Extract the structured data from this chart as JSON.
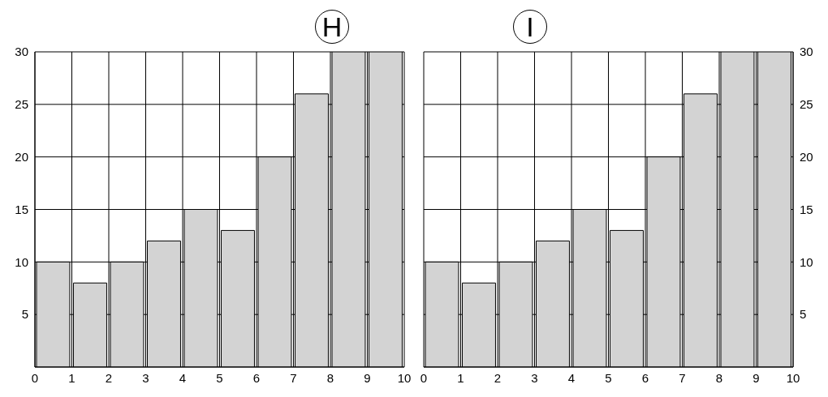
{
  "chart_data": [
    {
      "type": "histogram",
      "title": "H",
      "bins": [
        0,
        1,
        2,
        3,
        4,
        5,
        6,
        7,
        8,
        9,
        10
      ],
      "values": [
        10,
        8,
        10,
        12,
        15,
        13,
        20,
        26,
        30,
        30
      ],
      "color": "#d3d3d3",
      "xlim": [
        0,
        10
      ],
      "xticks": [
        0,
        1,
        2,
        3,
        4,
        5,
        6,
        7,
        8,
        9,
        10
      ],
      "ylim": [
        0,
        30
      ],
      "yticks": [
        5,
        10,
        15,
        20,
        25,
        30
      ],
      "grid": true
    },
    {
      "type": "histogram",
      "title": "I",
      "bins": [
        0,
        1,
        2,
        3,
        4,
        5,
        6,
        7,
        8,
        9,
        10
      ],
      "values": [
        10,
        8,
        10,
        12,
        15,
        13,
        20,
        26,
        30,
        30
      ],
      "color": "#d3d3d3",
      "xlim": [
        0,
        10
      ],
      "xticks": [
        0,
        1,
        2,
        3,
        4,
        5,
        6,
        7,
        8,
        9,
        10
      ],
      "ylim": [
        0,
        30
      ],
      "yticks": [
        5,
        10,
        15,
        20,
        25,
        30
      ],
      "grid": true
    }
  ]
}
